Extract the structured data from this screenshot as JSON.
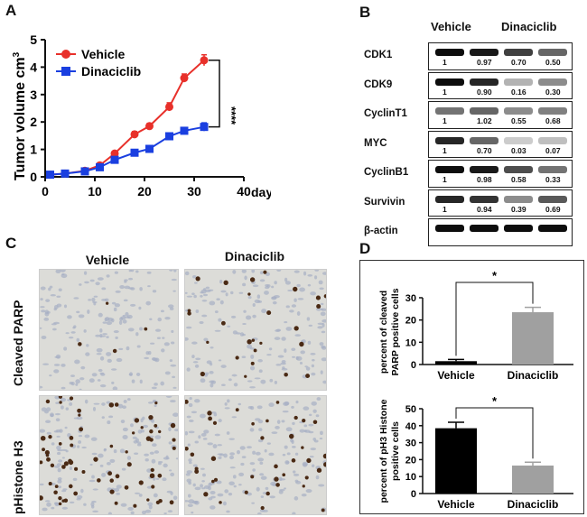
{
  "panels": {
    "a": "A",
    "b": "B",
    "c": "C",
    "d": "D"
  },
  "panel_a": {
    "ylabel": "Tumor volume cm",
    "ylabel_sup": "3",
    "xaxis_suffix": "days",
    "significance": "****"
  },
  "chart_data": [
    {
      "type": "line",
      "panel": "A",
      "xlabel": "days",
      "ylabel": "Tumor volume cm3",
      "xlim": [
        0,
        40
      ],
      "ylim": [
        0,
        5
      ],
      "x_ticks": [
        "0",
        "10",
        "20",
        "30",
        "40"
      ],
      "y_ticks": [
        "0",
        "1",
        "2",
        "3",
        "4",
        "5"
      ],
      "legend": [
        "Vehicle",
        "Dinaciclib"
      ],
      "colors": {
        "Vehicle": "#e8302a",
        "Dinaciclib": "#1a3fe0"
      },
      "series": [
        {
          "name": "Vehicle",
          "x": [
            1,
            4,
            8,
            11,
            14,
            18,
            21,
            25,
            28,
            32
          ],
          "y": [
            0.08,
            0.12,
            0.22,
            0.42,
            0.85,
            1.55,
            1.85,
            2.55,
            3.6,
            4.25
          ],
          "err": [
            0.02,
            0.02,
            0.04,
            0.05,
            0.08,
            0.1,
            0.1,
            0.15,
            0.15,
            0.2
          ]
        },
        {
          "name": "Dinaciclib",
          "x": [
            1,
            4,
            8,
            11,
            14,
            18,
            21,
            25,
            28,
            32
          ],
          "y": [
            0.08,
            0.12,
            0.2,
            0.35,
            0.62,
            0.88,
            1.02,
            1.48,
            1.68,
            1.82
          ],
          "err": [
            0.02,
            0.02,
            0.03,
            0.04,
            0.05,
            0.06,
            0.07,
            0.1,
            0.12,
            0.15
          ]
        }
      ],
      "annotation": "****"
    },
    {
      "type": "bar",
      "panel": "D",
      "categories": [
        "Vehicle",
        "Dinaciclib"
      ],
      "values": [
        1.5,
        23.5
      ],
      "errors": [
        0.8,
        2.2
      ],
      "ylabel": "percent of cleaved PARP positive cells",
      "ylim": [
        0,
        30
      ],
      "y_ticks": [
        "0",
        "10",
        "20",
        "30"
      ],
      "colors": [
        "#000000",
        "#a0a0a0"
      ],
      "annotation": "*"
    },
    {
      "type": "bar",
      "panel": "D",
      "categories": [
        "Vehicle",
        "Dinaciclib"
      ],
      "values": [
        38.5,
        16.5
      ],
      "errors": [
        3.5,
        2.0
      ],
      "ylabel": "percent of pH3 Histone positive cells",
      "ylim": [
        0,
        50
      ],
      "y_ticks": [
        "0",
        "10",
        "20",
        "30",
        "40",
        "50"
      ],
      "colors": [
        "#000000",
        "#a0a0a0"
      ],
      "annotation": "*"
    }
  ],
  "panel_b": {
    "headers": [
      "Vehicle",
      "Dinaciclib"
    ],
    "rows": [
      {
        "label": "CDK1",
        "values": [
          "1",
          "0.97",
          "0.70",
          "0.50"
        ]
      },
      {
        "label": "CDK9",
        "values": [
          "1",
          "0.90",
          "0.16",
          "0.30"
        ]
      },
      {
        "label": "CyclinT1",
        "values": [
          "1",
          "1.02",
          "0.55",
          "0.68"
        ]
      },
      {
        "label": "MYC",
        "values": [
          "1",
          "0.70",
          "0.03",
          "0.07"
        ]
      },
      {
        "label": "CyclinB1",
        "values": [
          "1",
          "0.98",
          "0.58",
          "0.33"
        ]
      },
      {
        "label": "Survivin",
        "values": [
          "1",
          "0.94",
          "0.39",
          "0.69"
        ]
      },
      {
        "label": "β-actin",
        "values": []
      }
    ]
  },
  "panel_c": {
    "columns": [
      "Vehicle",
      "Dinaciclib"
    ],
    "rows": [
      "Cleaved PARP",
      "pHistone H3"
    ]
  },
  "panel_d": {
    "top_ylabel_1": "percent of cleaved",
    "top_ylabel_2": "PARP positive cells",
    "bottom_ylabel_1": "percent of pH3 Histone",
    "bottom_ylabel_2": "positive cells"
  }
}
